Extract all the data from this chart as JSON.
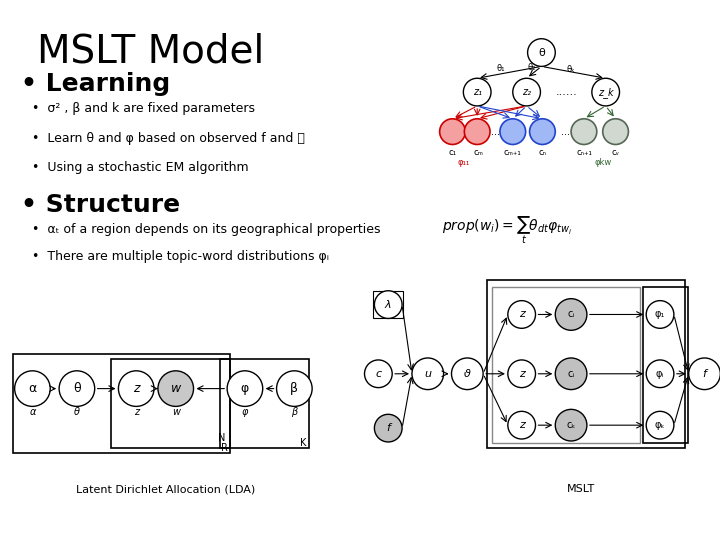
{
  "title": "MSLT Model",
  "background_color": "#ffffff",
  "title_fontsize": 28,
  "bullet1_header": "Learning",
  "bullet1_fontsize": 18,
  "bullet1_items": [
    "•  σ² , β and k are fixed parameters",
    "•  Learn θ and φ based on observed f and 𝒲",
    "•  Using a stochastic EM algorithm"
  ],
  "bullet1_items_fontsize": 9,
  "bullet2_header": "Structure",
  "bullet2_fontsize": 18,
  "bullet2_items": [
    "•  αₜ of a region depends on its geographical properties",
    "•  There are multiple topic-word distributions φᵢ"
  ],
  "bullet2_items_fontsize": 9,
  "lda_label": "Latent Dirichlet Allocation (LDA)",
  "mslt_label": "MSLT"
}
